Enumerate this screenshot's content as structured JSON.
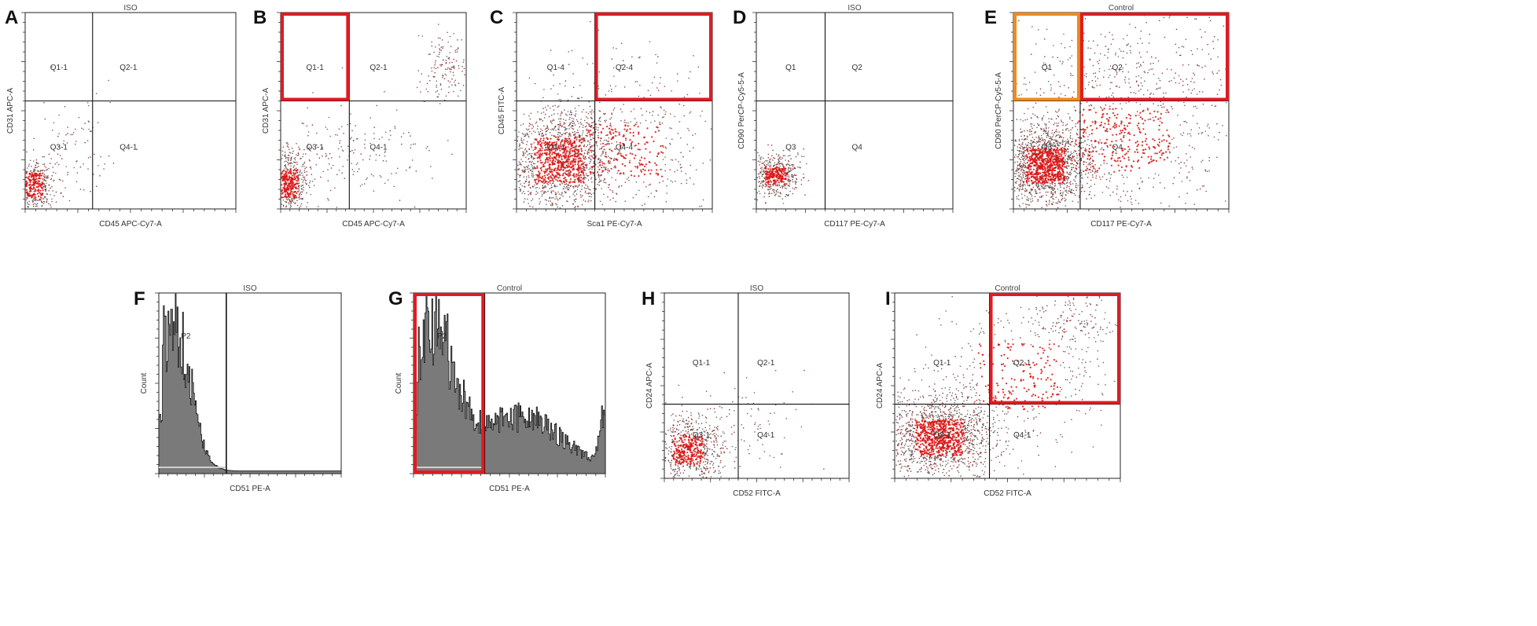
{
  "figure": {
    "description_panels": "Flow cytometry figure with nine panels A–I"
  },
  "chart_data": [
    {
      "id": "A",
      "panel_label": "A",
      "type": "scatter",
      "title": "ISO",
      "xlabel": "CD45 APC-Cy7-A",
      "ylabel": "CD31 APC-A",
      "quadrants": [
        "Q1-1",
        "Q2-1",
        "Q3-1",
        "Q4-1"
      ],
      "gate_x": 0.32,
      "gate_y": 0.55,
      "clusters": [
        {
          "cx": 0.04,
          "cy": 0.12,
          "sx": 0.05,
          "sy": 0.07,
          "n": 420
        },
        {
          "cx": 0.22,
          "cy": 0.3,
          "sx": 0.14,
          "sy": 0.14,
          "n": 90
        }
      ],
      "highlight_boxes": []
    },
    {
      "id": "B",
      "panel_label": "B",
      "type": "scatter",
      "title": "",
      "xlabel": "CD45 APC-Cy7-A",
      "ylabel": "CD31 APC-A",
      "quadrants": [
        "Q1-1",
        "Q2-1",
        "Q3-1",
        "Q4-1"
      ],
      "gate_x": 0.37,
      "gate_y": 0.55,
      "clusters": [
        {
          "cx": 0.05,
          "cy": 0.13,
          "sx": 0.05,
          "sy": 0.08,
          "n": 520
        },
        {
          "cx": 0.4,
          "cy": 0.28,
          "sx": 0.2,
          "sy": 0.14,
          "n": 180
        },
        {
          "cx": 0.88,
          "cy": 0.7,
          "sx": 0.06,
          "sy": 0.1,
          "n": 140
        }
      ],
      "highlight_boxes": [
        {
          "color": "red",
          "x0": 0.0,
          "y0": 0.55,
          "x1": 0.37,
          "y1": 1.0
        }
      ]
    },
    {
      "id": "C",
      "panel_label": "C",
      "type": "scatter",
      "title": "",
      "xlabel": "Sca1 PE-Cy7-A",
      "ylabel": "CD45 FITC-A",
      "quadrants": [
        "Q1-4",
        "Q2-4",
        "Q3-4",
        "Q4-4"
      ],
      "gate_x": 0.4,
      "gate_y": 0.55,
      "clusters": [
        {
          "cx": 0.22,
          "cy": 0.25,
          "sx": 0.14,
          "sy": 0.13,
          "n": 1500
        },
        {
          "cx": 0.55,
          "cy": 0.3,
          "sx": 0.22,
          "sy": 0.15,
          "n": 450
        },
        {
          "cx": 0.55,
          "cy": 0.68,
          "sx": 0.25,
          "sy": 0.12,
          "n": 70
        }
      ],
      "highlight_boxes": [
        {
          "color": "red",
          "x0": 0.4,
          "y0": 0.55,
          "x1": 1.0,
          "y1": 1.0
        }
      ]
    },
    {
      "id": "D",
      "panel_label": "D",
      "type": "scatter",
      "title": "ISO",
      "xlabel": "CD117 PE-Cy7-A",
      "ylabel": "CD90 PerCP-Cy5-5-A",
      "quadrants": [
        "Q1",
        "Q2",
        "Q3",
        "Q4"
      ],
      "gate_x": 0.35,
      "gate_y": 0.55,
      "clusters": [
        {
          "cx": 0.1,
          "cy": 0.17,
          "sx": 0.06,
          "sy": 0.05,
          "n": 500
        }
      ],
      "highlight_boxes": []
    },
    {
      "id": "E",
      "panel_label": "E",
      "type": "scatter",
      "title": "Control",
      "xlabel": "CD117 PE-Cy7-A",
      "ylabel": "CD90 PerCP-Cy5-5-A",
      "quadrants": [
        "Q1",
        "Q2",
        "Q3",
        "Q4"
      ],
      "gate_x": 0.31,
      "gate_y": 0.55,
      "clusters": [
        {
          "cx": 0.15,
          "cy": 0.22,
          "sx": 0.1,
          "sy": 0.1,
          "n": 1600
        },
        {
          "cx": 0.5,
          "cy": 0.35,
          "sx": 0.25,
          "sy": 0.18,
          "n": 700
        },
        {
          "cx": 0.55,
          "cy": 0.72,
          "sx": 0.28,
          "sy": 0.14,
          "n": 300
        }
      ],
      "highlight_boxes": [
        {
          "color": "orange",
          "x0": 0.0,
          "y0": 0.55,
          "x1": 0.31,
          "y1": 1.0
        },
        {
          "color": "red",
          "x0": 0.31,
          "y0": 0.55,
          "x1": 1.0,
          "y1": 1.0
        }
      ]
    },
    {
      "id": "F",
      "panel_label": "F",
      "type": "histogram",
      "title": "ISO",
      "xlabel": "CD51 PE-A",
      "ylabel": "Count",
      "gate_label": "P2",
      "gate_x": 0.37,
      "modes": [
        {
          "mu": 0.08,
          "sd": 0.09,
          "h": 0.85
        }
      ],
      "highlight_boxes": []
    },
    {
      "id": "G",
      "panel_label": "G",
      "type": "histogram",
      "title": "Control",
      "xlabel": "CD51 PE-A",
      "ylabel": "Count",
      "gate_label": "P2",
      "gate_x": 0.37,
      "modes": [
        {
          "mu": 0.1,
          "sd": 0.11,
          "h": 0.78
        },
        {
          "mu": 0.55,
          "sd": 0.22,
          "h": 0.3
        },
        {
          "mu": 0.99,
          "sd": 0.02,
          "h": 0.28
        }
      ],
      "highlight_boxes": [
        {
          "color": "red",
          "x0": 0.0,
          "y0": 0.0,
          "x1": 0.37,
          "y1": 1.0
        }
      ]
    },
    {
      "id": "H",
      "panel_label": "H",
      "type": "scatter",
      "title": "ISO",
      "xlabel": "CD52 FITC-A",
      "ylabel": "CD24 APC-A",
      "quadrants": [
        "Q1-1",
        "Q2-1",
        "Q3-1",
        "Q4-1"
      ],
      "gate_x": 0.4,
      "gate_y": 0.4,
      "clusters": [
        {
          "cx": 0.13,
          "cy": 0.15,
          "sx": 0.09,
          "sy": 0.09,
          "n": 700
        },
        {
          "cx": 0.45,
          "cy": 0.3,
          "sx": 0.15,
          "sy": 0.12,
          "n": 90
        }
      ],
      "highlight_boxes": []
    },
    {
      "id": "I",
      "panel_label": "I",
      "type": "scatter",
      "title": "Control",
      "xlabel": "CD52 FITC-A",
      "ylabel": "CD24 APC-A",
      "quadrants": [
        "Q1-1",
        "Q2-1",
        "Q3-1",
        "Q4-1"
      ],
      "gate_x": 0.42,
      "gate_y": 0.4,
      "clusters": [
        {
          "cx": 0.2,
          "cy": 0.22,
          "sx": 0.12,
          "sy": 0.11,
          "n": 1600
        },
        {
          "cx": 0.55,
          "cy": 0.55,
          "sx": 0.2,
          "sy": 0.2,
          "n": 400
        },
        {
          "cx": 0.78,
          "cy": 0.85,
          "sx": 0.1,
          "sy": 0.08,
          "n": 150
        }
      ],
      "highlight_boxes": [
        {
          "color": "red",
          "x0": 0.42,
          "y0": 0.4,
          "x1": 1.0,
          "y1": 1.0
        }
      ]
    }
  ]
}
